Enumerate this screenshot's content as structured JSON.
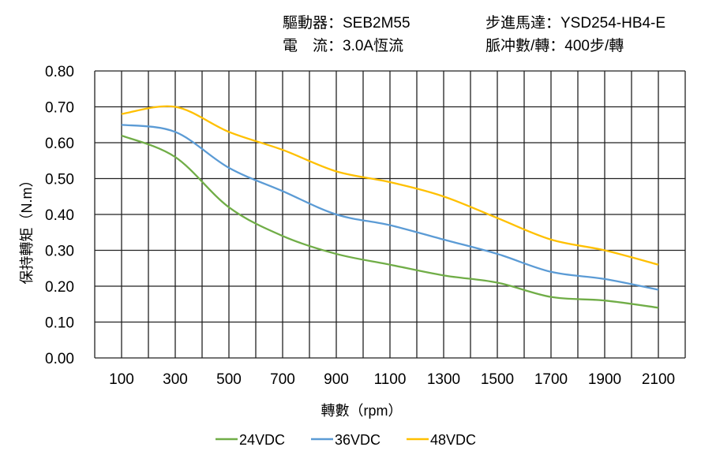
{
  "header": {
    "driver": "驅動器：SEB2M55",
    "motor": "步進馬達：YSD254-HB4-E",
    "current": "電　流：3.0A恆流",
    "pulses": "脈冲數/轉：400步/轉"
  },
  "chart_data": {
    "type": "line",
    "title": "",
    "xlabel": "轉數（rpm）",
    "ylabel": "保持轉矩（N.m）",
    "xlim": [
      0,
      2200
    ],
    "ylim": [
      0,
      0.8
    ],
    "x_ticks": [
      "100",
      "300",
      "500",
      "700",
      "900",
      "1100",
      "1300",
      "1500",
      "1700",
      "1900",
      "2100"
    ],
    "y_ticks": [
      "0.00",
      "0.10",
      "0.20",
      "0.30",
      "0.40",
      "0.50",
      "0.60",
      "0.70",
      "0.80"
    ],
    "grid": true,
    "legend": "bottom",
    "x": [
      100,
      300,
      500,
      700,
      900,
      1100,
      1300,
      1500,
      1700,
      1900,
      2100
    ],
    "series": [
      {
        "name": "24VDC",
        "color": "#70ad47",
        "values": [
          0.62,
          0.56,
          0.42,
          0.34,
          0.29,
          0.26,
          0.23,
          0.21,
          0.17,
          0.16,
          0.14
        ]
      },
      {
        "name": "36VDC",
        "color": "#5b9bd5",
        "values": [
          0.65,
          0.63,
          0.53,
          0.465,
          0.4,
          0.37,
          0.33,
          0.29,
          0.24,
          0.22,
          0.19
        ]
      },
      {
        "name": "48VDC",
        "color": "#ffc000",
        "values": [
          0.68,
          0.7,
          0.63,
          0.58,
          0.52,
          0.49,
          0.45,
          0.39,
          0.33,
          0.3,
          0.26
        ]
      }
    ]
  }
}
